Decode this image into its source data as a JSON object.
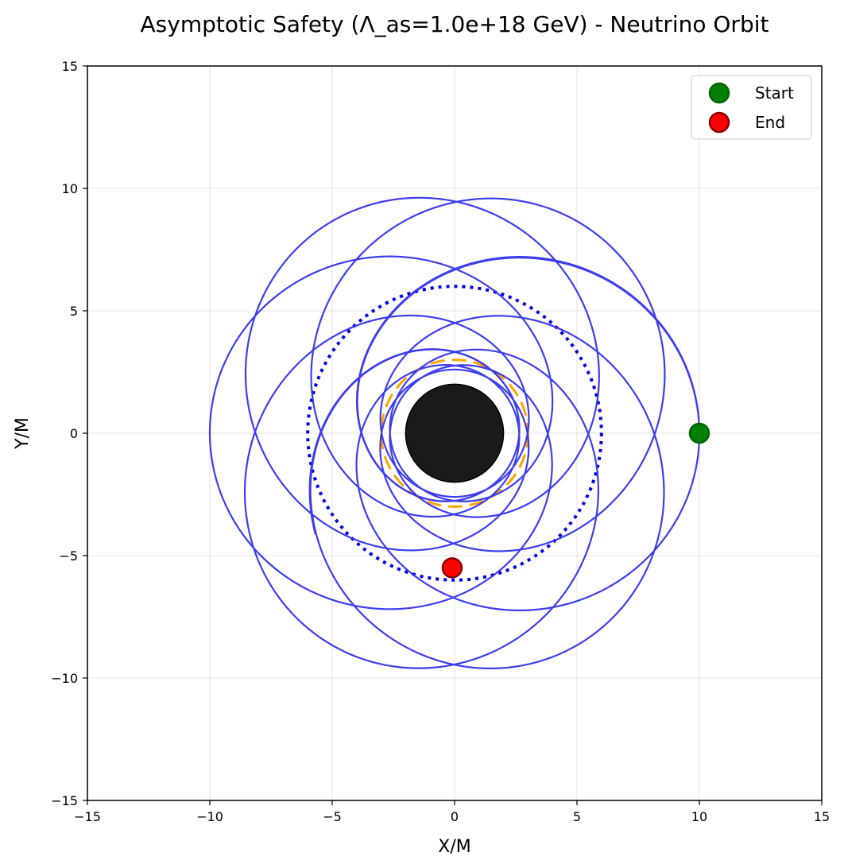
{
  "chart_data": {
    "type": "line",
    "title": "Asymptotic Safety (Λ_as=1.0e+18 GeV) - Neutrino Orbit",
    "xlabel": "X/M",
    "ylabel": "Y/M",
    "xlim": [
      -15,
      15
    ],
    "ylim": [
      -15,
      15
    ],
    "xticks": [
      -15,
      -10,
      -5,
      0,
      5,
      10,
      15
    ],
    "yticks": [
      -15,
      -10,
      -5,
      0,
      5,
      10,
      15
    ],
    "xtick_labels": [
      "−15",
      "−10",
      "−5",
      "0",
      "5",
      "10",
      "15"
    ],
    "ytick_labels": [
      "−15",
      "−10",
      "−5",
      "0",
      "5",
      "10",
      "15"
    ],
    "grid": true,
    "legend_position": "top-right",
    "orbit": {
      "type": "precessing-ellipse",
      "r_periapsis": 2.6,
      "r_apoapsis": 10.0,
      "start_angle_deg": 0,
      "precession_deg_per_orbit": 163.6,
      "orbits": 12.6,
      "color": "#3333ee"
    },
    "black_hole": {
      "radius": 2.0,
      "color": "#1a1a1a"
    },
    "orange_circle": {
      "radius": 3.0,
      "color": "#ffa500",
      "style": "dashed"
    },
    "blue_circle": {
      "radius": 6.0,
      "color": "#0000dd",
      "style": "dotted"
    },
    "markers": [
      {
        "label": "Start",
        "x": 10.0,
        "y": 0.0,
        "color": "#008000",
        "edge": "#006400"
      },
      {
        "label": "End",
        "x": -0.1,
        "y": -5.5,
        "color": "#ff0000",
        "edge": "#8b0000"
      }
    ]
  }
}
